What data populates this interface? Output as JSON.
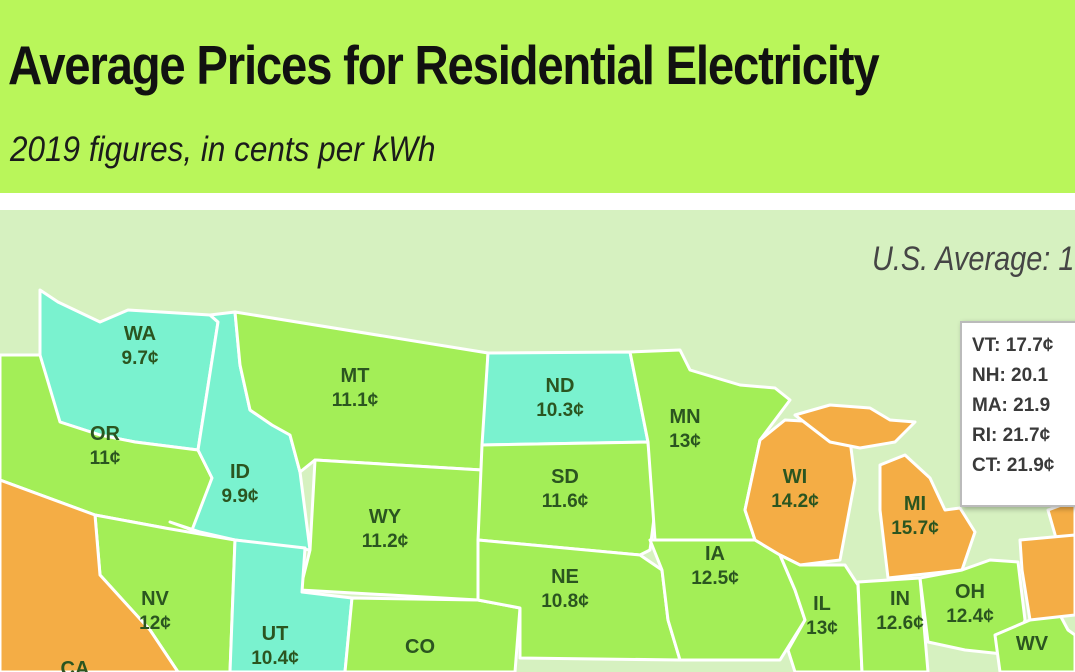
{
  "header": {
    "title": "Average Prices for Residential Electricity",
    "subtitle": "2019 figures, in cents per kWh"
  },
  "us_average": "U.S. Average: 1",
  "colors": {
    "header_bg": "#b9f65a",
    "map_bg": "#d6f1c0",
    "price_low": "#7af2cf",
    "price_mid": "#a3ee57",
    "price_high": "#f4ad45"
  },
  "states": [
    {
      "abbr": "WA",
      "price": "9.7¢",
      "tier": "low"
    },
    {
      "abbr": "OR",
      "price": "11¢",
      "tier": "mid"
    },
    {
      "abbr": "ID",
      "price": "9.9¢",
      "tier": "low"
    },
    {
      "abbr": "MT",
      "price": "11.1¢",
      "tier": "mid"
    },
    {
      "abbr": "WY",
      "price": "11.2¢",
      "tier": "mid"
    },
    {
      "abbr": "NV",
      "price": "12¢",
      "tier": "mid"
    },
    {
      "abbr": "UT",
      "price": "10.4¢",
      "tier": "low"
    },
    {
      "abbr": "CO",
      "price": "",
      "tier": "mid"
    },
    {
      "abbr": "ND",
      "price": "10.3¢",
      "tier": "low"
    },
    {
      "abbr": "SD",
      "price": "11.6¢",
      "tier": "mid"
    },
    {
      "abbr": "NE",
      "price": "10.8¢",
      "tier": "mid"
    },
    {
      "abbr": "MN",
      "price": "13¢",
      "tier": "mid"
    },
    {
      "abbr": "IA",
      "price": "12.5¢",
      "tier": "mid"
    },
    {
      "abbr": "WI",
      "price": "14.2¢",
      "tier": "high"
    },
    {
      "abbr": "MI",
      "price": "15.7¢",
      "tier": "high"
    },
    {
      "abbr": "IL",
      "price": "13¢",
      "tier": "mid"
    },
    {
      "abbr": "IN",
      "price": "12.6¢",
      "tier": "mid"
    },
    {
      "abbr": "OH",
      "price": "12.4¢",
      "tier": "mid"
    },
    {
      "abbr": "WV",
      "price": "",
      "tier": "mid"
    },
    {
      "abbr": "CA",
      "price": "",
      "tier": "high"
    }
  ],
  "northeast_box": [
    "VT: 17.7¢",
    "NH: 20.1",
    "MA: 21.9",
    "RI: 21.7¢",
    "CT: 21.9¢"
  ]
}
